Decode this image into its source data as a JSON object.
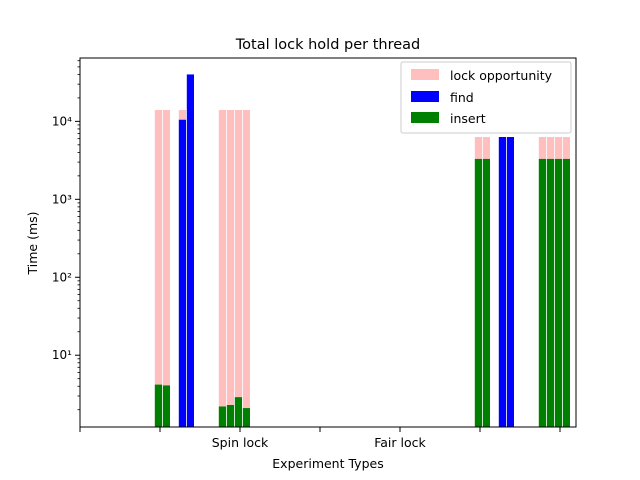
{
  "chart_data": {
    "type": "bar",
    "stacked": true,
    "title": "Total lock hold per thread",
    "xlabel": "Experiment Types",
    "ylabel": "Time (ms)",
    "yscale": "log",
    "ylim": [
      1.2,
      65000
    ],
    "y_ticks": [
      {
        "value": 10,
        "label": "10¹"
      },
      {
        "value": 100,
        "label": "10²"
      },
      {
        "value": 1000,
        "label": "10³"
      },
      {
        "value": 10000,
        "label": "10⁴"
      }
    ],
    "x_ticks": [
      "",
      "",
      "Spin lock",
      "",
      "Fair lock",
      "",
      ""
    ],
    "legend": {
      "placement": "top-right"
    },
    "colors": {
      "lock opportunity": "#ffbfbf",
      "find": "#0000ff",
      "insert": "#008000"
    },
    "series": [
      {
        "name": "lock opportunity",
        "color": "#ffbfbf"
      },
      {
        "name": "find",
        "color": "#0000ff"
      },
      {
        "name": "insert",
        "color": "#008000"
      }
    ],
    "bars": [
      {
        "x": 0.78,
        "insert": 4.2,
        "lock_opportunity": 14000
      },
      {
        "x": 0.88,
        "insert": 4.1,
        "lock_opportunity": 14000
      },
      {
        "x": 1.08,
        "find": 10500,
        "lock_opportunity": 14000
      },
      {
        "x": 1.18,
        "find": 40000
      },
      {
        "x": 1.58,
        "insert": 2.2,
        "lock_opportunity": 14000
      },
      {
        "x": 1.68,
        "insert": 2.3,
        "lock_opportunity": 14000
      },
      {
        "x": 1.78,
        "insert": 2.9,
        "lock_opportunity": 14000
      },
      {
        "x": 1.88,
        "insert": 2.1,
        "lock_opportunity": 14000
      },
      {
        "x": 4.78,
        "insert": 3300,
        "lock_opportunity": 6300
      },
      {
        "x": 4.88,
        "insert": 3300,
        "lock_opportunity": 6300
      },
      {
        "x": 5.08,
        "find": 6300
      },
      {
        "x": 5.18,
        "find": 6300
      },
      {
        "x": 5.58,
        "insert": 3300,
        "lock_opportunity": 6300
      },
      {
        "x": 5.68,
        "insert": 3300,
        "lock_opportunity": 6300
      },
      {
        "x": 5.78,
        "insert": 3300,
        "lock_opportunity": 6300
      },
      {
        "x": 5.88,
        "insert": 3300,
        "lock_opportunity": 6300
      }
    ]
  }
}
